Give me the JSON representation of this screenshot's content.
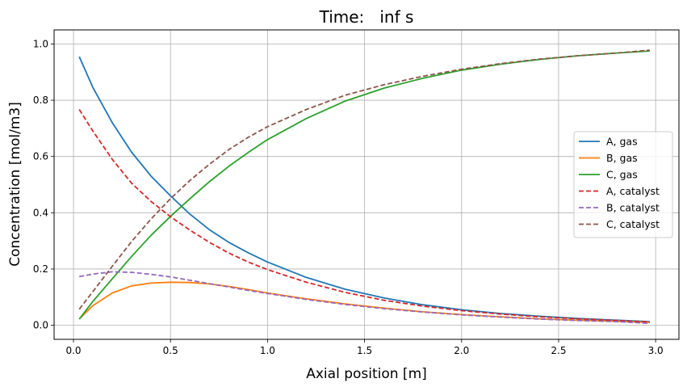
{
  "chart_data": {
    "type": "line",
    "title": "Time:   inf s",
    "xlabel": "Axial position [m]",
    "ylabel": "Concentration [mol/m3]",
    "xlim": [
      -0.1,
      3.12
    ],
    "ylim": [
      -0.05,
      1.05
    ],
    "x_ticks": [
      0.0,
      0.5,
      1.0,
      1.5,
      2.0,
      2.5,
      3.0
    ],
    "x_tick_labels": [
      "0.0",
      "0.5",
      "1.0",
      "1.5",
      "2.0",
      "2.5",
      "3.0"
    ],
    "y_ticks": [
      0.0,
      0.2,
      0.4,
      0.6,
      0.8,
      1.0
    ],
    "y_tick_labels": [
      "0.0",
      "0.2",
      "0.4",
      "0.6",
      "0.8",
      "1.0"
    ],
    "grid": true,
    "legend_position": "right",
    "x": [
      0.03,
      0.1,
      0.2,
      0.3,
      0.4,
      0.5,
      0.6,
      0.7,
      0.8,
      0.9,
      1.0,
      1.2,
      1.4,
      1.6,
      1.8,
      2.0,
      2.2,
      2.4,
      2.6,
      2.8,
      2.97
    ],
    "series": [
      {
        "name": "A, gas",
        "color": "#1f77b4",
        "dash": "solid",
        "values": [
          0.955,
          0.845,
          0.72,
          0.615,
          0.53,
          0.46,
          0.395,
          0.34,
          0.295,
          0.258,
          0.225,
          0.17,
          0.128,
          0.097,
          0.073,
          0.055,
          0.042,
          0.032,
          0.024,
          0.018,
          0.013
        ]
      },
      {
        "name": "B, gas",
        "color": "#ff7f0e",
        "dash": "solid",
        "values": [
          0.022,
          0.07,
          0.115,
          0.14,
          0.15,
          0.153,
          0.152,
          0.147,
          0.138,
          0.127,
          0.115,
          0.094,
          0.076,
          0.061,
          0.048,
          0.038,
          0.03,
          0.023,
          0.018,
          0.014,
          0.01
        ]
      },
      {
        "name": "C, gas",
        "color": "#2ca02c",
        "dash": "solid",
        "values": [
          0.022,
          0.085,
          0.165,
          0.245,
          0.32,
          0.387,
          0.45,
          0.51,
          0.565,
          0.614,
          0.66,
          0.735,
          0.797,
          0.843,
          0.878,
          0.907,
          0.928,
          0.945,
          0.958,
          0.968,
          0.975
        ]
      },
      {
        "name": "A, catalyst",
        "color": "#d62728",
        "dash": "dashed",
        "values": [
          0.767,
          0.69,
          0.59,
          0.505,
          0.44,
          0.386,
          0.338,
          0.295,
          0.257,
          0.225,
          0.198,
          0.153,
          0.117,
          0.089,
          0.068,
          0.052,
          0.04,
          0.03,
          0.023,
          0.017,
          0.012
        ]
      },
      {
        "name": "B, catalyst",
        "color": "#9467bd",
        "dash": "dashed",
        "values": [
          0.173,
          0.182,
          0.19,
          0.188,
          0.181,
          0.172,
          0.16,
          0.148,
          0.136,
          0.124,
          0.113,
          0.092,
          0.074,
          0.059,
          0.047,
          0.037,
          0.029,
          0.022,
          0.017,
          0.013,
          0.007
        ]
      },
      {
        "name": "C, catalyst",
        "color": "#8c564b",
        "dash": "dashed",
        "values": [
          0.057,
          0.12,
          0.21,
          0.298,
          0.378,
          0.45,
          0.515,
          0.572,
          0.624,
          0.668,
          0.706,
          0.767,
          0.818,
          0.855,
          0.885,
          0.91,
          0.93,
          0.946,
          0.958,
          0.968,
          0.978
        ]
      }
    ]
  }
}
